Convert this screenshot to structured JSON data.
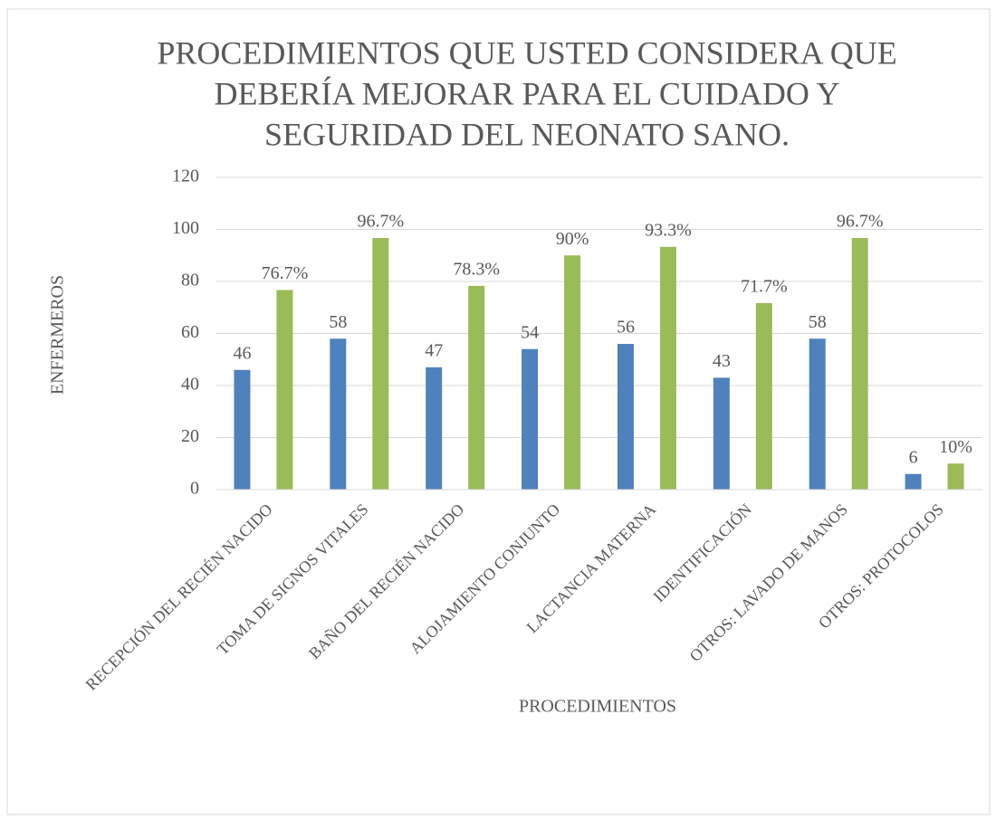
{
  "chart_data": {
    "type": "bar",
    "title": [
      "PROCEDIMIENTOS QUE USTED CONSIDERA QUE",
      "DEBERÍA MEJORAR PARA EL CUIDADO Y",
      "SEGURIDAD DEL NEONATO SANO."
    ],
    "y_label": "ENFERMEROS",
    "x_label": "PROCEDIMIENTOS",
    "categories": [
      "RECEPCIÓN DEL RECIÉN NACIDO",
      "TOMA DE SIGNOS VITALES",
      "BAÑO DEL RECIÉN NACIDO",
      "ALOJAMIENTO CONJUNTO",
      "LACTANCIA MATERNA",
      "IDENTIFICACIÓN",
      "OTROS: LAVADO DE MANOS",
      "OTROS: PROTOCOLOS"
    ],
    "series": [
      {
        "color": "#4f81bd",
        "values": [
          46,
          58,
          47,
          54,
          56,
          43,
          58,
          6
        ]
      },
      {
        "color": "#9bbb59",
        "values": [
          76.7,
          96.7,
          78.3,
          90,
          93.3,
          71.7,
          96.7,
          10
        ],
        "value_labels": [
          "76.7%",
          "96.7%",
          "78.3%",
          "90%",
          "93.3%",
          "71.7%",
          "96.7%",
          "10%"
        ]
      }
    ],
    "ylim": [
      0,
      120
    ],
    "yticks": [
      0,
      20,
      40,
      60,
      80,
      100,
      120
    ],
    "grid": true
  }
}
